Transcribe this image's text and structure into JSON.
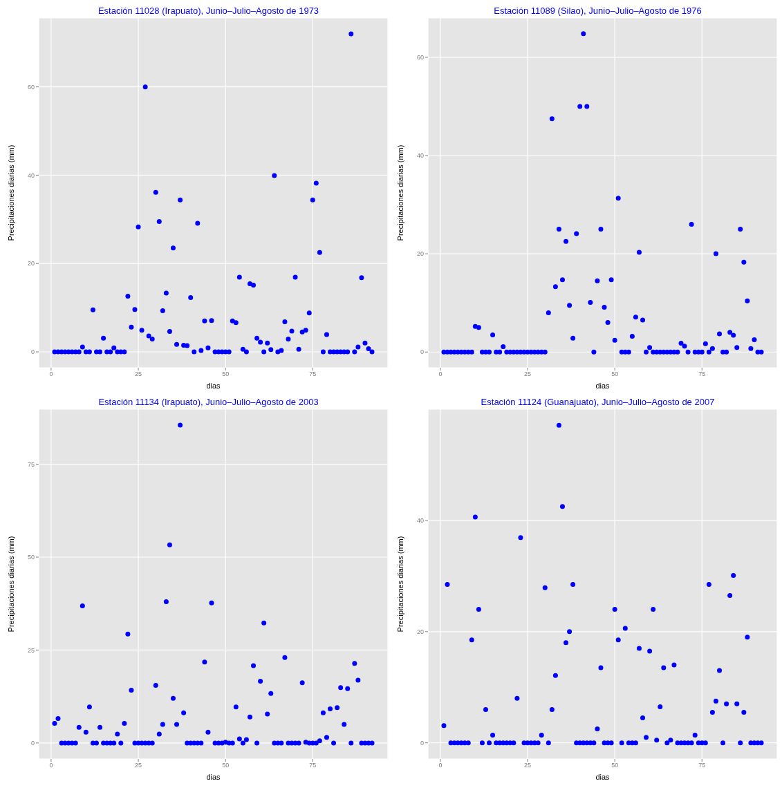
{
  "chart_data": [
    {
      "type": "scatter",
      "title": "Estación 11028 (Irapuato), Junio–Julio–Agosto de 1973",
      "xlabel": "dias",
      "ylabel": "Precipitaciones diarias (mm)",
      "marker": "circle",
      "grid": true,
      "x": [
        1,
        2,
        3,
        4,
        5,
        6,
        7,
        8,
        9,
        10,
        11,
        12,
        13,
        14,
        15,
        16,
        17,
        18,
        19,
        20,
        21,
        22,
        23,
        24,
        25,
        26,
        27,
        28,
        29,
        30,
        31,
        32,
        33,
        34,
        35,
        36,
        37,
        38,
        39,
        40,
        41,
        42,
        43,
        44,
        45,
        46,
        47,
        48,
        49,
        50,
        51,
        52,
        53,
        54,
        55,
        56,
        57,
        58,
        59,
        60,
        61,
        62,
        63,
        64,
        65,
        66,
        67,
        68,
        69,
        70,
        71,
        72,
        73,
        74,
        75,
        76,
        77,
        78,
        79,
        80,
        81,
        82,
        83,
        84,
        85,
        86,
        87,
        88,
        89,
        90,
        91,
        92
      ],
      "series": [
        {
          "color": "#0000ff",
          "values": [
            0,
            0,
            0,
            0,
            0,
            0,
            0,
            0,
            1.1,
            0,
            0,
            9.5,
            0,
            0,
            3.1,
            0,
            0,
            0.9,
            0,
            0,
            0,
            12.6,
            5.6,
            9.6,
            28.3,
            4.9,
            60,
            3.6,
            2.9,
            36.1,
            29.5,
            9.3,
            13.3,
            4.6,
            23.5,
            1.7,
            34.4,
            1.5,
            1.4,
            12.3,
            0,
            29.1,
            0.3,
            7,
            0.9,
            7.1,
            0,
            0,
            0,
            0,
            0,
            7,
            6.6,
            16.9,
            0.6,
            0,
            15.4,
            15.1,
            3.1,
            2.2,
            0,
            2,
            0.5,
            39.9,
            0,
            0.3,
            6.8,
            2.9,
            4.7,
            16.9,
            0.6,
            4.5,
            4.9,
            8.8,
            34.4,
            38.2,
            22.5,
            0,
            3.9,
            0,
            0,
            0,
            0,
            0,
            0,
            72,
            0,
            1.1,
            16.8,
            2,
            0.7,
            0
          ]
        }
      ],
      "xlim": [
        -3.55,
        96.55
      ],
      "xticks": [
        0,
        25,
        50,
        75
      ],
      "ylim": [
        -3.6,
        75.6
      ],
      "yticks": [
        0,
        20,
        40,
        60
      ]
    },
    {
      "type": "scatter",
      "title": "Estación 11089 (Silao), Junio–Julio–Agosto de 1976",
      "xlabel": "dias",
      "ylabel": "Precipitaciones diarias (mm)",
      "marker": "circle",
      "grid": true,
      "x": [
        1,
        2,
        3,
        4,
        5,
        6,
        7,
        8,
        9,
        10,
        11,
        12,
        13,
        14,
        15,
        16,
        17,
        18,
        19,
        20,
        21,
        22,
        23,
        24,
        25,
        26,
        27,
        28,
        29,
        30,
        31,
        32,
        33,
        34,
        35,
        36,
        37,
        38,
        39,
        40,
        41,
        42,
        43,
        44,
        45,
        46,
        47,
        48,
        49,
        50,
        51,
        52,
        53,
        54,
        55,
        56,
        57,
        58,
        59,
        60,
        61,
        62,
        63,
        64,
        65,
        66,
        67,
        68,
        69,
        70,
        71,
        72,
        73,
        74,
        75,
        76,
        77,
        78,
        79,
        80,
        81,
        82,
        83,
        84,
        85,
        86,
        87,
        88,
        89,
        90,
        91,
        92
      ],
      "series": [
        {
          "color": "#0000ff",
          "values": [
            0,
            0,
            0,
            0,
            0,
            0,
            0,
            0,
            0,
            5.2,
            5,
            0,
            0,
            0,
            3.5,
            0,
            0,
            1.1,
            0,
            0,
            0,
            0,
            0,
            0,
            0,
            0,
            0,
            0,
            0,
            0,
            8,
            47.5,
            13.3,
            25,
            14.7,
            22.5,
            9.5,
            2.8,
            24.1,
            50,
            64.8,
            50,
            10.1,
            0,
            14.5,
            25,
            9.1,
            6,
            14.7,
            2.4,
            31.3,
            0,
            0,
            0,
            3.2,
            7.1,
            20.3,
            6.5,
            0,
            0.9,
            0,
            0,
            0,
            0,
            0,
            0,
            0,
            0,
            1.8,
            1.2,
            0,
            26,
            0,
            0,
            0,
            1.7,
            0,
            0.7,
            20,
            3.7,
            0,
            0,
            4,
            3.4,
            0.9,
            25,
            18.3,
            10.4,
            0.7,
            2.5,
            0,
            0
          ]
        }
      ],
      "xlim": [
        -3.55,
        96.55
      ],
      "xticks": [
        0,
        25,
        50,
        75
      ],
      "ylim": [
        -3.2,
        68
      ],
      "yticks": [
        0,
        20,
        40,
        60
      ]
    },
    {
      "type": "scatter",
      "title": "Estación 11134 (Irapuato), Junio–Julio–Agosto de 2003",
      "xlabel": "dias",
      "ylabel": "Precipitaciones diarias (mm)",
      "marker": "circle",
      "grid": true,
      "x": [
        1,
        2,
        3,
        4,
        5,
        6,
        7,
        8,
        9,
        10,
        11,
        12,
        13,
        14,
        15,
        16,
        17,
        18,
        19,
        20,
        21,
        22,
        23,
        24,
        25,
        26,
        27,
        28,
        29,
        30,
        31,
        32,
        33,
        34,
        35,
        36,
        37,
        38,
        39,
        40,
        41,
        42,
        43,
        44,
        45,
        46,
        47,
        48,
        49,
        50,
        51,
        52,
        53,
        54,
        55,
        56,
        57,
        58,
        59,
        60,
        61,
        62,
        63,
        64,
        65,
        66,
        67,
        68,
        69,
        70,
        71,
        72,
        73,
        74,
        75,
        76,
        77,
        78,
        79,
        80,
        81,
        82,
        83,
        84,
        85,
        86,
        87,
        88,
        89,
        90,
        91,
        92
      ],
      "series": [
        {
          "color": "#0000ff",
          "values": [
            5.3,
            6.6,
            0,
            0,
            0,
            0,
            0,
            4.2,
            36.9,
            2.9,
            9.7,
            0,
            0,
            4.2,
            0,
            0,
            0,
            0,
            2.4,
            0,
            5.3,
            29.3,
            14.2,
            0,
            0,
            0,
            0,
            0,
            0,
            15.5,
            2.4,
            5,
            38,
            53.3,
            12,
            5,
            85.5,
            8.1,
            0,
            0,
            0,
            0,
            0,
            21.8,
            2.9,
            37.7,
            0,
            0,
            0,
            0.2,
            0,
            0,
            9.7,
            1.1,
            0,
            0.9,
            7,
            20.8,
            0,
            16.6,
            32.3,
            7.8,
            13.3,
            0,
            0,
            0,
            23,
            0,
            0,
            0,
            0,
            16.2,
            0.2,
            0,
            0,
            0,
            0.6,
            8.1,
            1.5,
            9.2,
            0,
            9.5,
            14.9,
            5,
            14.6,
            0,
            21.4,
            16.9,
            0,
            0,
            0,
            0
          ]
        }
      ],
      "xlim": [
        -3.55,
        96.55
      ],
      "xticks": [
        0,
        25,
        50,
        75
      ],
      "ylim": [
        -4.3,
        89.8
      ],
      "yticks": [
        0,
        25,
        50,
        75
      ]
    },
    {
      "type": "scatter",
      "title": "Estación 11124 (Guanajuato), Junio–Julio–Agosto de 2007",
      "xlabel": "dias",
      "ylabel": "Precipitaciones diarias (mm)",
      "marker": "circle",
      "grid": true,
      "x": [
        1,
        2,
        3,
        4,
        5,
        6,
        7,
        8,
        9,
        10,
        11,
        12,
        13,
        14,
        15,
        16,
        17,
        18,
        19,
        20,
        21,
        22,
        23,
        24,
        25,
        26,
        27,
        28,
        29,
        30,
        31,
        32,
        33,
        34,
        35,
        36,
        37,
        38,
        39,
        40,
        41,
        42,
        43,
        44,
        45,
        46,
        47,
        48,
        49,
        50,
        51,
        52,
        53,
        54,
        55,
        56,
        57,
        58,
        59,
        60,
        61,
        62,
        63,
        64,
        65,
        66,
        67,
        68,
        69,
        70,
        71,
        72,
        73,
        74,
        75,
        76,
        77,
        78,
        79,
        80,
        81,
        82,
        83,
        84,
        85,
        86,
        87,
        88,
        89,
        90,
        91,
        92
      ],
      "series": [
        {
          "color": "#0000ff",
          "values": [
            3.1,
            28.5,
            0,
            0,
            0,
            0,
            0,
            0,
            18.5,
            40.6,
            24,
            0,
            6,
            0,
            1.4,
            0,
            0,
            0,
            0,
            0,
            0,
            8,
            36.9,
            0,
            0,
            0,
            0,
            0,
            1.4,
            27.9,
            0,
            6,
            12.1,
            57.1,
            42.5,
            18,
            20,
            28.5,
            0,
            0,
            0,
            0,
            0,
            0,
            2.5,
            13.5,
            0,
            0,
            0,
            24,
            18.5,
            0,
            20.6,
            0,
            0,
            0,
            17,
            4.5,
            1,
            16.5,
            24,
            0.5,
            6.5,
            13.5,
            0,
            0.5,
            14,
            0,
            0,
            0,
            0,
            0,
            1.4,
            0,
            0,
            0,
            28.5,
            5.5,
            7.5,
            13,
            0,
            7,
            26.5,
            30.1,
            7,
            0,
            5.5,
            19,
            0,
            0,
            0,
            0
          ]
        }
      ],
      "xlim": [
        -3.55,
        96.55
      ],
      "xticks": [
        0,
        25,
        50,
        75
      ],
      "ylim": [
        -2.9,
        60
      ],
      "yticks": [
        0,
        20,
        40
      ]
    }
  ]
}
